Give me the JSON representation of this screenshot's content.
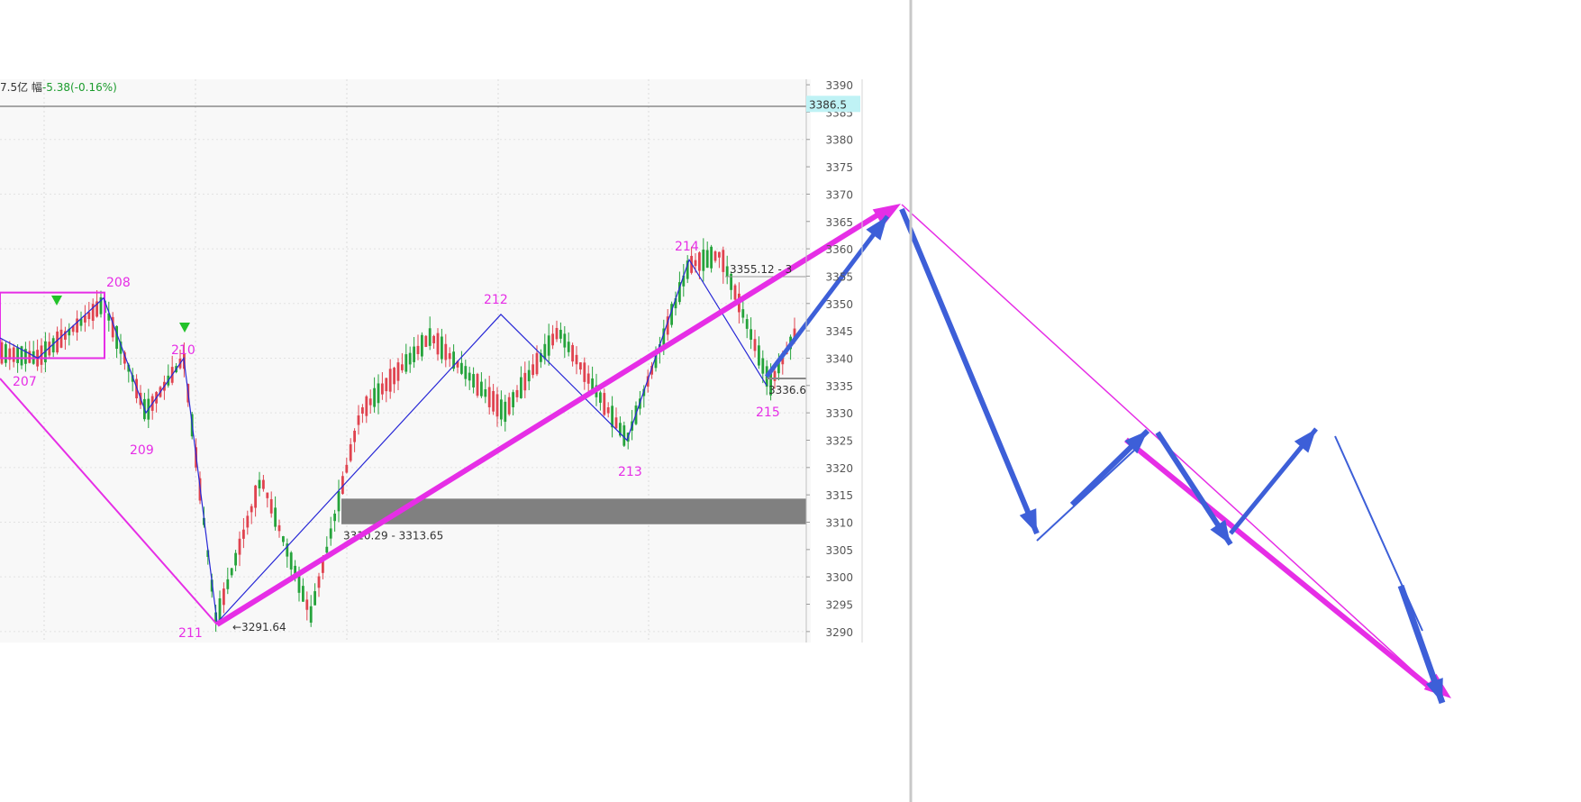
{
  "info_bar": {
    "amount": "7.5亿",
    "change_label": "幅",
    "change_value": "-5.38(-0.16%)"
  },
  "chart_data": {
    "type": "line",
    "title": "",
    "xlabel": "",
    "ylabel": "",
    "ylim": [
      3288,
      3391
    ],
    "y_ticks": [
      3390,
      3385,
      3380,
      3375,
      3370,
      3365,
      3360,
      3355,
      3350,
      3345,
      3340,
      3335,
      3330,
      3325,
      3320,
      3315,
      3310,
      3305,
      3300,
      3295,
      3290
    ],
    "current_price_label": "3386.5",
    "current_price": 3386.5,
    "price_range_start": 3352,
    "price_range_end": 3340,
    "wave_pivots": [
      {
        "label": "207",
        "value": 3340
      },
      {
        "label": "208",
        "value": 3351
      },
      {
        "label": "209",
        "value": 3330
      },
      {
        "label": "210",
        "value": 3340
      },
      {
        "label": "211",
        "value": 3291.64
      },
      {
        "label": "212",
        "value": 3348
      },
      {
        "label": "213",
        "value": 3325
      },
      {
        "label": "214",
        "value": 3358
      },
      {
        "label": "215",
        "value": 3335
      }
    ],
    "annotations": {
      "low_label": "3291.64",
      "zone_label": "3310.29 - 3313.65",
      "zone_low": 3310.29,
      "zone_high": 3313.65,
      "high_label": "3355.12 - 3",
      "right_label": "3336.6"
    },
    "colors": {
      "up_candle": "#e0434f",
      "down_candle": "#25a33b",
      "wave_line": "#2727d6",
      "trend_magenta": "#e62ee6",
      "forecast_blue": "#3d5fd8",
      "zone_gray": "#808080",
      "price_tag_bg": "#bff2f5"
    }
  }
}
